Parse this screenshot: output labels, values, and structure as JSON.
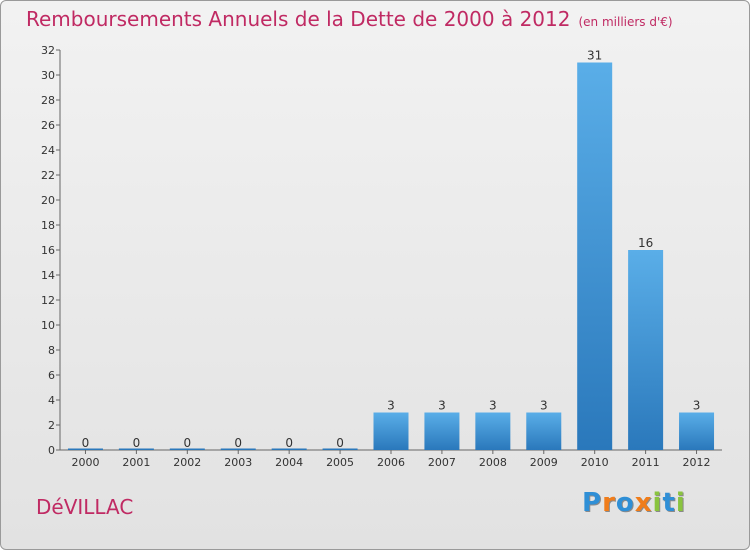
{
  "title": "Remboursements Annuels de la Dette de 2000 à 2012",
  "unit_note": "(en milliers d'€)",
  "commune": "DéVILLAC",
  "brand": {
    "letters": [
      "P",
      "r",
      "o",
      "x",
      "i",
      "t",
      "i"
    ],
    "colors": [
      "#2f8fd6",
      "#f07d1b",
      "#2f8fd6",
      "#f07d1b",
      "#8ac43f",
      "#2f8fd6",
      "#8ac43f"
    ]
  },
  "colors": {
    "bar_top": "#5aaee8",
    "bar_bottom": "#2a78bb",
    "title": "#c02a63"
  },
  "chart_data": {
    "type": "bar",
    "title": "Remboursements Annuels de la Dette de 2000 à 2012",
    "categories": [
      "2000",
      "2001",
      "2002",
      "2003",
      "2004",
      "2005",
      "2006",
      "2007",
      "2008",
      "2009",
      "2010",
      "2011",
      "2012"
    ],
    "values": [
      0,
      0,
      0,
      0,
      0,
      0,
      3,
      3,
      3,
      3,
      31,
      16,
      3
    ],
    "ylim": [
      0,
      32
    ],
    "yticks": [
      0,
      2,
      4,
      6,
      8,
      10,
      12,
      14,
      16,
      18,
      20,
      22,
      24,
      26,
      28,
      30,
      32
    ],
    "grid": false,
    "data_labels": true
  }
}
